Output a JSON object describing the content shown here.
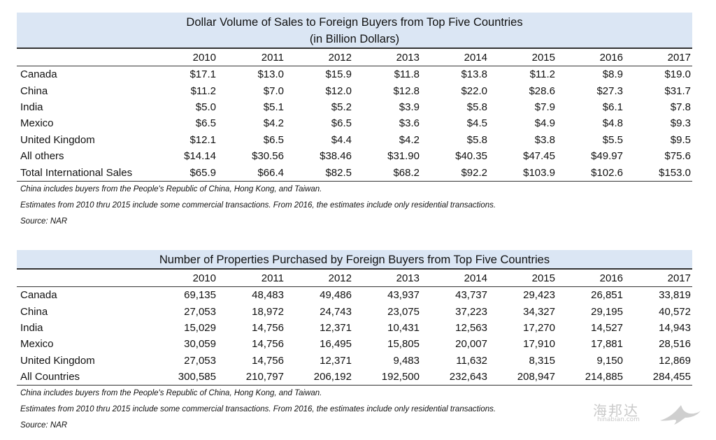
{
  "table1": {
    "title_line1": "Dollar Volume of Sales to Foreign Buyers from Top Five Countries",
    "title_line2": "(in Billion Dollars)",
    "years": [
      "2010",
      "2011",
      "2012",
      "2013",
      "2014",
      "2015",
      "2016",
      "2017"
    ],
    "rows": [
      {
        "label": "Canada",
        "values": [
          "$17.1",
          "$13.0",
          "$15.9",
          "$11.8",
          "$13.8",
          "$11.2",
          "$8.9",
          "$19.0"
        ]
      },
      {
        "label": "China",
        "values": [
          "$11.2",
          "$7.0",
          "$12.0",
          "$12.8",
          "$22.0",
          "$28.6",
          "$27.3",
          "$31.7"
        ]
      },
      {
        "label": "India",
        "values": [
          "$5.0",
          "$5.1",
          "$5.2",
          "$3.9",
          "$5.8",
          "$7.9",
          "$6.1",
          "$7.8"
        ]
      },
      {
        "label": "Mexico",
        "values": [
          "$6.5",
          "$4.2",
          "$6.5",
          "$3.6",
          "$4.5",
          "$4.9",
          "$4.8",
          "$9.3"
        ]
      },
      {
        "label": "United Kingdom",
        "values": [
          "$12.1",
          "$6.5",
          "$4.4",
          "$4.2",
          "$5.8",
          "$3.8",
          "$5.5",
          "$9.5"
        ]
      },
      {
        "label": "All others",
        "values": [
          "$14.14",
          "$30.56",
          "$38.46",
          "$31.90",
          "$40.35",
          "$47.45",
          "$49.97",
          "$75.6"
        ]
      },
      {
        "label": "Total International Sales",
        "values": [
          "$65.9",
          "$66.4",
          "$82.5",
          "$68.2",
          "$92.2",
          "$103.9",
          "$102.6",
          "$153.0"
        ]
      }
    ],
    "notes": [
      "China includes buyers from the People's Republic of China, Hong Kong, and Taiwan.",
      "Estimates from 2010 thru 2015 include some commercial transactions. From 2016, the estimates include only residential transactions.",
      "Source: NAR"
    ]
  },
  "table2": {
    "title_line1": "Number of Properties Purchased by Foreign Buyers from Top Five Countries",
    "years": [
      "2010",
      "2011",
      "2012",
      "2013",
      "2014",
      "2015",
      "2016",
      "2017"
    ],
    "rows": [
      {
        "label": "Canada",
        "values": [
          "69,135",
          "48,483",
          "49,486",
          "43,937",
          "43,737",
          "29,423",
          "26,851",
          "33,819"
        ]
      },
      {
        "label": "China",
        "values": [
          "27,053",
          "18,972",
          "24,743",
          "23,075",
          "37,223",
          "34,327",
          "29,195",
          "40,572"
        ]
      },
      {
        "label": "India",
        "values": [
          "15,029",
          "14,756",
          "12,371",
          "10,431",
          "12,563",
          "17,270",
          "14,527",
          "14,943"
        ]
      },
      {
        "label": "Mexico",
        "values": [
          "30,059",
          "14,756",
          "16,495",
          "15,805",
          "20,007",
          "17,910",
          "17,881",
          "28,516"
        ]
      },
      {
        "label": "United Kingdom",
        "values": [
          "27,053",
          "14,756",
          "12,371",
          "9,483",
          "11,632",
          "8,315",
          "9,150",
          "12,869"
        ]
      },
      {
        "label": "All Countries",
        "values": [
          "300,585",
          "210,797",
          "206,192",
          "192,500",
          "232,643",
          "208,947",
          "214,885",
          "284,455"
        ]
      }
    ],
    "notes": [
      "China includes buyers from the People's Republic of China, Hong Kong, and Taiwan.",
      "Estimates from 2010 thru 2015 include some commercial transactions. From 2016, the estimates include only residential transactions.",
      "Source: NAR"
    ]
  },
  "watermark": {
    "text_cn": "海邦达",
    "text_en": "hinabian.com",
    "icon": "bird-logo-icon"
  },
  "colors": {
    "title_band": "#dbe6f4",
    "rule": "#333333",
    "watermark": "#c9c9c9"
  }
}
